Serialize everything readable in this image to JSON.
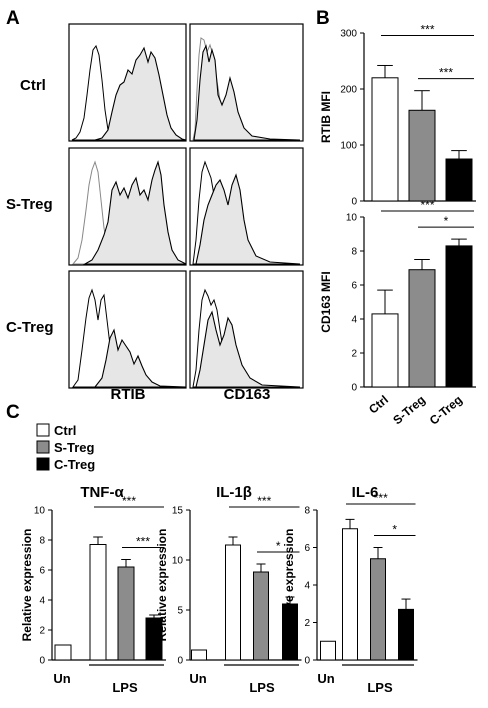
{
  "panel_labels": {
    "a": "A",
    "b": "B",
    "c": "C"
  },
  "histograms": {
    "row_labels": [
      "Ctrl",
      "S-Treg",
      "C-Treg"
    ],
    "col_labels": [
      "RTIB",
      "CD163"
    ]
  },
  "chart_data": [
    {
      "type": "bar",
      "panel": "B-top",
      "categories": [
        "Ctrl",
        "S-Treg",
        "C-Treg"
      ],
      "values": [
        220,
        162,
        75
      ],
      "errors": [
        22,
        35,
        15
      ],
      "colors": [
        "#ffffff",
        "#8c8c8c",
        "#000000"
      ],
      "title": "",
      "xlabel": "",
      "ylabel": "RTIB MFI",
      "ylim": [
        0,
        300
      ],
      "yticks": [
        "0",
        "100",
        "200",
        "300"
      ],
      "show_xticklabels": false,
      "significance": [
        {
          "from": 0,
          "to": 2,
          "label": "***"
        },
        {
          "from": 1,
          "to": 2,
          "label": "***"
        }
      ]
    },
    {
      "type": "bar",
      "panel": "B-bottom",
      "categories": [
        "Ctrl",
        "S-Treg",
        "C-Treg"
      ],
      "values": [
        4.3,
        6.9,
        8.3
      ],
      "errors": [
        1.4,
        0.6,
        0.4
      ],
      "colors": [
        "#ffffff",
        "#8c8c8c",
        "#000000"
      ],
      "title": "",
      "xlabel": "",
      "ylabel": "CD163 MFI",
      "ylim": [
        0,
        10
      ],
      "yticks": [
        "0",
        "2",
        "4",
        "6",
        "8",
        "10"
      ],
      "show_xticklabels": true,
      "significance": [
        {
          "from": 0,
          "to": 2,
          "label": "***"
        },
        {
          "from": 1,
          "to": 2,
          "label": "*"
        }
      ]
    },
    {
      "type": "bar",
      "panel": "C-TNF",
      "categories": [
        "Un",
        "Ctrl",
        "S-Treg",
        "C-Treg"
      ],
      "values": [
        1.0,
        7.7,
        6.2,
        2.8
      ],
      "errors": [
        0,
        0.5,
        0.5,
        0.2
      ],
      "colors": [
        "#ffffff",
        "#ffffff",
        "#8c8c8c",
        "#000000"
      ],
      "title": "TNF-α",
      "xlabel": "",
      "ylabel": "Relative expression",
      "ylim": [
        0,
        10
      ],
      "yticks": [
        "0",
        "2",
        "4",
        "6",
        "8",
        "10"
      ],
      "group_labels": {
        "untreated": "Un",
        "treated": "LPS"
      },
      "significance": [
        {
          "from": 1,
          "to": 3,
          "label": "***"
        },
        {
          "from": 2,
          "to": 3,
          "label": "***"
        }
      ]
    },
    {
      "type": "bar",
      "panel": "C-IL1b",
      "categories": [
        "Un",
        "Ctrl",
        "S-Treg",
        "C-Treg"
      ],
      "values": [
        1.0,
        11.5,
        8.8,
        5.6
      ],
      "errors": [
        0,
        0.8,
        0.8,
        0.7
      ],
      "colors": [
        "#ffffff",
        "#ffffff",
        "#8c8c8c",
        "#000000"
      ],
      "title": "IL-1β",
      "xlabel": "",
      "ylabel": "Relative expression",
      "ylim": [
        0,
        15
      ],
      "yticks": [
        "0",
        "5",
        "10",
        "15"
      ],
      "group_labels": {
        "untreated": "Un",
        "treated": "LPS"
      },
      "significance": [
        {
          "from": 1,
          "to": 3,
          "label": "***"
        },
        {
          "from": 2,
          "to": 3,
          "label": "*"
        }
      ]
    },
    {
      "type": "bar",
      "panel": "C-IL6",
      "categories": [
        "Un",
        "Ctrl",
        "S-Treg",
        "C-Treg"
      ],
      "values": [
        1.0,
        7.0,
        5.4,
        2.7
      ],
      "errors": [
        0,
        0.5,
        0.6,
        0.55
      ],
      "colors": [
        "#ffffff",
        "#ffffff",
        "#8c8c8c",
        "#000000"
      ],
      "title": "IL-6",
      "xlabel": "",
      "ylabel": "Relative expression",
      "ylim": [
        0,
        8
      ],
      "yticks": [
        "0",
        "2",
        "4",
        "6",
        "8"
      ],
      "group_labels": {
        "untreated": "Un",
        "treated": "LPS"
      },
      "significance": [
        {
          "from": 1,
          "to": 3,
          "label": "***"
        },
        {
          "from": 2,
          "to": 3,
          "label": "*"
        }
      ]
    }
  ],
  "legend": {
    "entries": [
      {
        "label": "Ctrl",
        "color": "#ffffff"
      },
      {
        "label": "S-Treg",
        "color": "#8c8c8c"
      },
      {
        "label": "C-Treg",
        "color": "#000000"
      }
    ]
  }
}
